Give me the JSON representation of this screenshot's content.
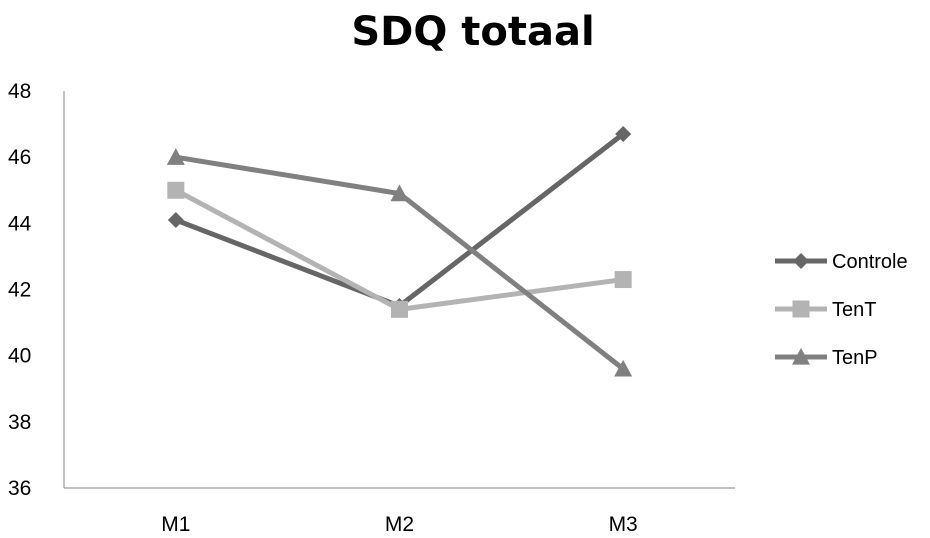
{
  "chart_data": {
    "type": "line",
    "title": "SDQ totaal",
    "xlabel": "",
    "ylabel": "",
    "categories": [
      "M1",
      "M2",
      "M3"
    ],
    "ylim": [
      36,
      48
    ],
    "yticks": [
      36,
      38,
      40,
      42,
      44,
      46,
      48
    ],
    "grid": false,
    "legend_position": "right",
    "series": [
      {
        "name": "Controle",
        "values": [
          44.1,
          41.5,
          46.7
        ],
        "marker": "diamond",
        "color": "#666666"
      },
      {
        "name": "TenT",
        "values": [
          45.0,
          41.4,
          42.3
        ],
        "marker": "square",
        "color": "#b3b3b3"
      },
      {
        "name": "TenP",
        "values": [
          46.0,
          44.9,
          39.6
        ],
        "marker": "triangle",
        "color": "#808080"
      }
    ]
  }
}
